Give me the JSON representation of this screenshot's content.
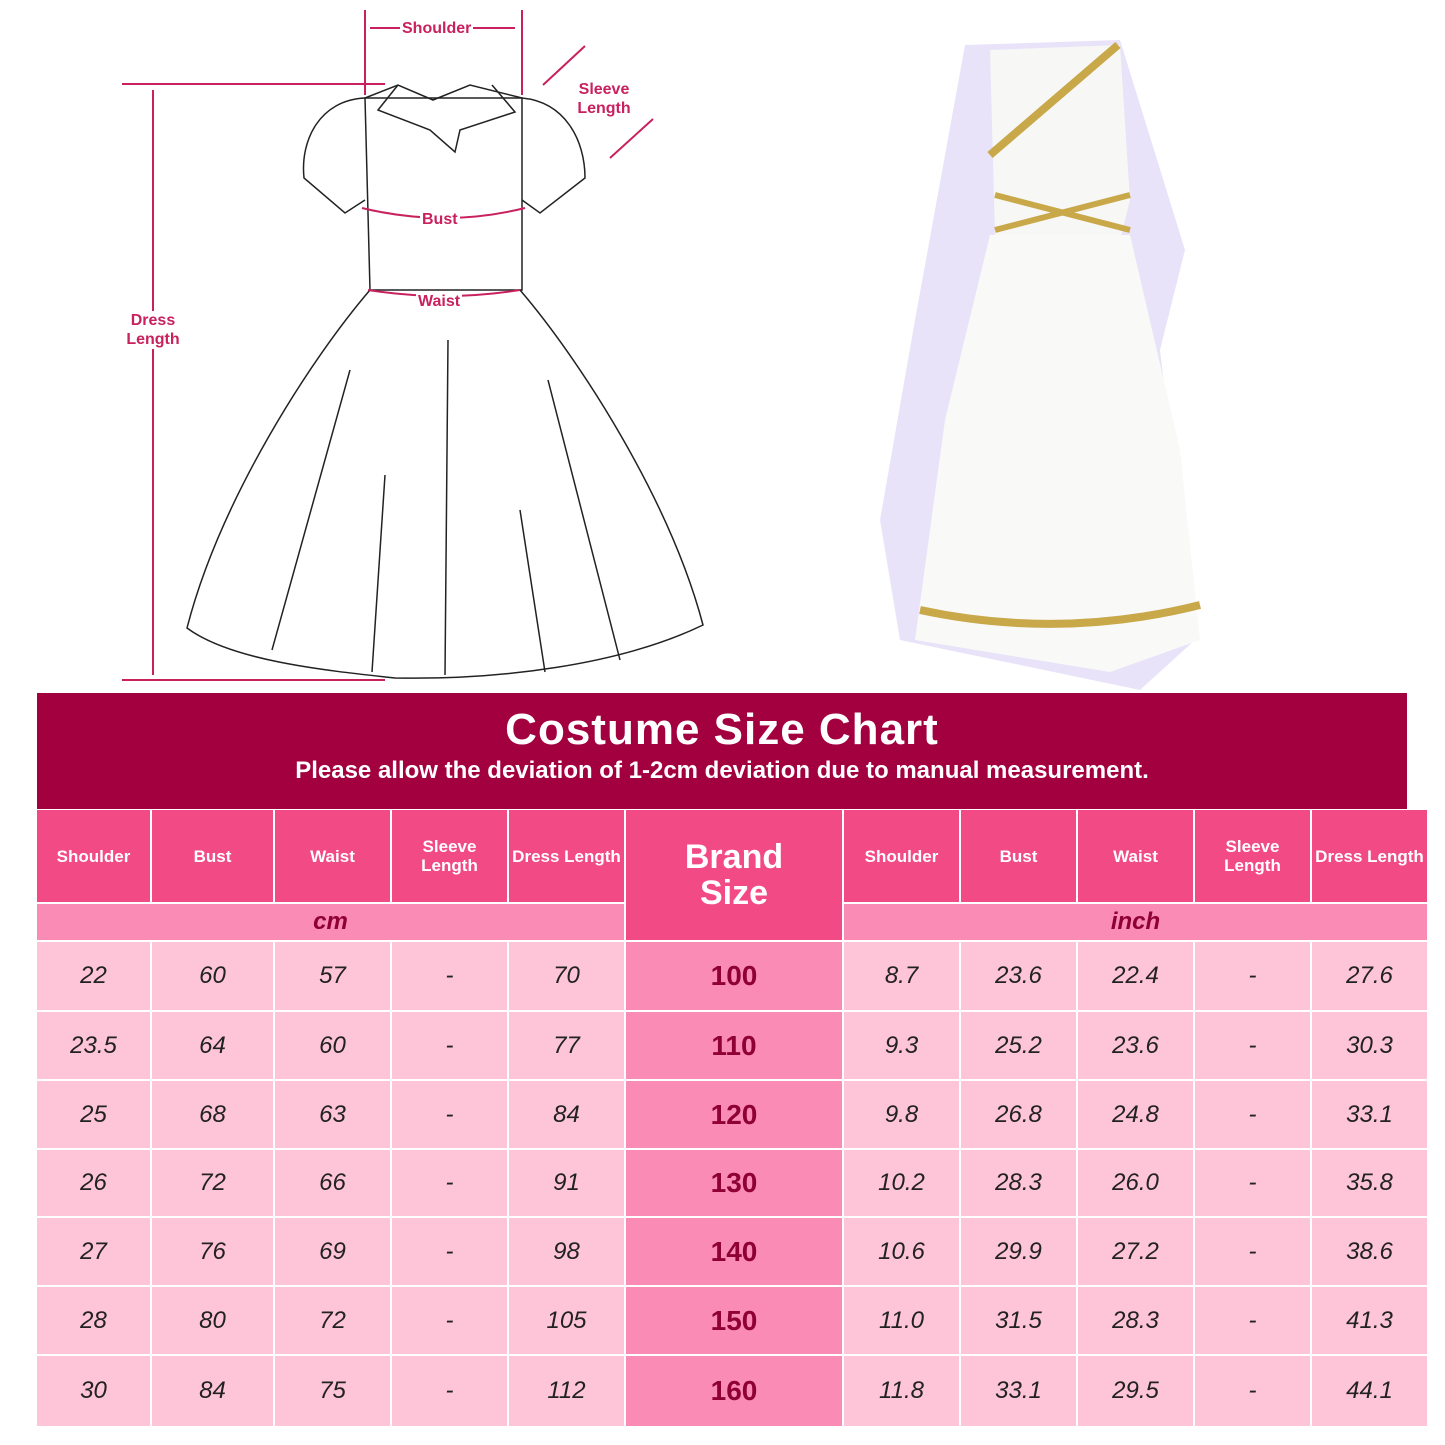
{
  "diagram_labels": {
    "shoulder": "Shoulder",
    "sleeve": "Sleeve Length",
    "bust": "Bust",
    "waist": "Waist",
    "dress": "Dress Length"
  },
  "title": "Costume Size Chart",
  "subtitle": "Please allow the deviation of 1-2cm deviation due to manual measurement.",
  "columns": [
    "Shoulder",
    "Bust",
    "Waist",
    "Sleeve Length",
    "Dress Length"
  ],
  "brand_header": "Brand Size",
  "units": {
    "cm": "cm",
    "inch": "inch"
  },
  "colors": {
    "banner": "#a3003f",
    "header": "#f24a85",
    "unit_row": "#f98bb4",
    "cell": "#fec4d8",
    "brand_text": "#8e0036"
  },
  "rows": [
    {
      "cm": [
        "22",
        "60",
        "57",
        "-",
        "70"
      ],
      "size": "100",
      "inch": [
        "8.7",
        "23.6",
        "22.4",
        "-",
        "27.6"
      ]
    },
    {
      "cm": [
        "23.5",
        "64",
        "60",
        "-",
        "77"
      ],
      "size": "110",
      "inch": [
        "9.3",
        "25.2",
        "23.6",
        "-",
        "30.3"
      ]
    },
    {
      "cm": [
        "25",
        "68",
        "63",
        "-",
        "84"
      ],
      "size": "120",
      "inch": [
        "9.8",
        "26.8",
        "24.8",
        "-",
        "33.1"
      ]
    },
    {
      "cm": [
        "26",
        "72",
        "66",
        "-",
        "91"
      ],
      "size": "130",
      "inch": [
        "10.2",
        "28.3",
        "26.0",
        "-",
        "35.8"
      ]
    },
    {
      "cm": [
        "27",
        "76",
        "69",
        "-",
        "98"
      ],
      "size": "140",
      "inch": [
        "10.6",
        "29.9",
        "27.2",
        "-",
        "38.6"
      ]
    },
    {
      "cm": [
        "28",
        "80",
        "72",
        "-",
        "105"
      ],
      "size": "150",
      "inch": [
        "11.0",
        "31.5",
        "28.3",
        "-",
        "41.3"
      ]
    },
    {
      "cm": [
        "30",
        "84",
        "75",
        "-",
        "112"
      ],
      "size": "160",
      "inch": [
        "11.8",
        "33.1",
        "29.5",
        "-",
        "44.1"
      ]
    }
  ]
}
